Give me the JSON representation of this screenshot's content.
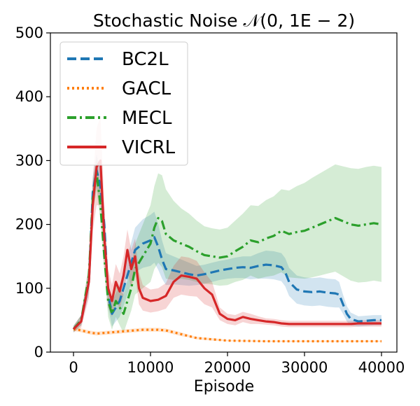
{
  "chart_data": {
    "type": "line",
    "title": "Stochastic Noise 𝒩(0, 1E − 2)",
    "xlabel": "Episode",
    "ylabel": "",
    "xlim": [
      -3000,
      42000
    ],
    "ylim": [
      0,
      500
    ],
    "xticks": [
      0,
      10000,
      20000,
      30000,
      40000
    ],
    "yticks": [
      0,
      100,
      200,
      300,
      400,
      500
    ],
    "grid": false,
    "legend_position": "top-left",
    "series": [
      {
        "name": "BC2L",
        "color": "#1f77b4",
        "style": "dashed",
        "x": [
          0,
          1000,
          2000,
          2500,
          3000,
          3500,
          4000,
          4500,
          5000,
          5500,
          6000,
          6500,
          7000,
          7500,
          8000,
          9000,
          10000,
          10500,
          11000,
          11500,
          12000,
          13000,
          14000,
          15000,
          16000,
          17000,
          18000,
          19000,
          20000,
          21000,
          22000,
          23000,
          24000,
          25000,
          26000,
          27000,
          27500,
          28000,
          29000,
          30000,
          31000,
          32000,
          33000,
          34000,
          34500,
          35000,
          35500,
          36000,
          37000,
          38000,
          39000,
          40000
        ],
        "y": [
          36,
          50,
          110,
          250,
          285,
          260,
          200,
          90,
          60,
          70,
          80,
          100,
          120,
          140,
          160,
          170,
          175,
          180,
          165,
          145,
          130,
          128,
          125,
          122,
          120,
          122,
          125,
          128,
          130,
          132,
          133,
          132,
          135,
          137,
          136,
          133,
          125,
          110,
          98,
          95,
          94,
          95,
          93,
          92,
          90,
          75,
          60,
          52,
          48,
          49,
          50,
          50
        ],
        "band": [
          5,
          8,
          20,
          25,
          25,
          25,
          25,
          20,
          20,
          22,
          25,
          28,
          30,
          32,
          35,
          38,
          40,
          40,
          36,
          30,
          25,
          22,
          20,
          18,
          15,
          15,
          15,
          15,
          15,
          16,
          17,
          18,
          20,
          22,
          22,
          22,
          22,
          22,
          22,
          22,
          22,
          22,
          22,
          22,
          20,
          15,
          12,
          10,
          8,
          8,
          8,
          8
        ]
      },
      {
        "name": "GACL",
        "color": "#ff7f0e",
        "style": "dotted",
        "x": [
          0,
          1000,
          2000,
          3000,
          4000,
          5000,
          6000,
          7000,
          8000,
          9000,
          10000,
          11000,
          12000,
          13000,
          14000,
          15000,
          16000,
          18000,
          20000,
          25000,
          30000,
          35000,
          40000
        ],
        "y": [
          36,
          34,
          31,
          29,
          30,
          31,
          32,
          33,
          34,
          35,
          35,
          35,
          34,
          31,
          28,
          25,
          22,
          20,
          18,
          17,
          17,
          17,
          17
        ],
        "band": [
          3,
          3,
          3,
          3,
          3,
          3,
          3,
          3,
          3,
          3,
          3,
          3,
          3,
          3,
          3,
          2,
          2,
          2,
          1,
          1,
          1,
          1,
          1
        ]
      },
      {
        "name": "MECL",
        "color": "#2ca02c",
        "style": "dashdot",
        "x": [
          0,
          1000,
          2000,
          2500,
          3000,
          3500,
          4000,
          4500,
          5000,
          5500,
          6000,
          6500,
          7000,
          7500,
          8000,
          8500,
          9000,
          9500,
          10000,
          10500,
          11000,
          11500,
          12000,
          13000,
          14000,
          15000,
          16000,
          17000,
          18000,
          19000,
          20000,
          21000,
          22000,
          23000,
          24000,
          25000,
          26000,
          27000,
          28000,
          29000,
          30000,
          31000,
          32000,
          33000,
          34000,
          35000,
          36000,
          37000,
          38000,
          39000,
          40000
        ],
        "y": [
          36,
          50,
          120,
          240,
          280,
          230,
          150,
          80,
          60,
          80,
          70,
          60,
          80,
          100,
          130,
          140,
          150,
          160,
          170,
          195,
          210,
          205,
          185,
          175,
          170,
          165,
          158,
          152,
          150,
          148,
          150,
          158,
          165,
          175,
          172,
          178,
          182,
          190,
          185,
          188,
          190,
          195,
          200,
          205,
          210,
          205,
          200,
          198,
          200,
          202,
          200
        ],
        "band": [
          5,
          8,
          20,
          25,
          25,
          25,
          25,
          25,
          25,
          25,
          28,
          30,
          32,
          35,
          40,
          45,
          50,
          55,
          60,
          65,
          70,
          72,
          70,
          62,
          55,
          52,
          48,
          45,
          44,
          44,
          45,
          48,
          52,
          55,
          57,
          60,
          62,
          65,
          68,
          72,
          75,
          78,
          80,
          82,
          84,
          86,
          88,
          89,
          90,
          90,
          90
        ]
      },
      {
        "name": "VICRL",
        "color": "#d62728",
        "style": "solid",
        "x": [
          0,
          1000,
          2000,
          2500,
          3000,
          3500,
          4000,
          4500,
          5000,
          5500,
          6000,
          6500,
          7000,
          7500,
          8000,
          8500,
          9000,
          10000,
          11000,
          12000,
          13000,
          14000,
          15000,
          16000,
          17000,
          18000,
          18500,
          19000,
          20000,
          21000,
          22000,
          23000,
          24000,
          25000,
          26000,
          27000,
          28000,
          29000,
          30000,
          31000,
          32000,
          33000,
          34000,
          35000,
          36000,
          37000,
          38000,
          39000,
          40000
        ],
        "y": [
          36,
          48,
          110,
          230,
          290,
          300,
          180,
          100,
          80,
          110,
          95,
          120,
          160,
          130,
          150,
          100,
          85,
          80,
          82,
          88,
          110,
          120,
          118,
          115,
          100,
          90,
          75,
          60,
          52,
          50,
          55,
          52,
          50,
          48,
          47,
          45,
          44,
          44,
          44,
          44,
          44,
          44,
          44,
          44,
          44,
          45,
          45,
          45,
          45
        ],
        "band": [
          5,
          10,
          25,
          40,
          60,
          70,
          50,
          30,
          25,
          28,
          28,
          30,
          32,
          30,
          28,
          25,
          20,
          18,
          18,
          20,
          25,
          30,
          30,
          28,
          25,
          20,
          15,
          10,
          8,
          8,
          8,
          8,
          6,
          5,
          5,
          5,
          5,
          5,
          5,
          5,
          5,
          5,
          5,
          5,
          5,
          5,
          5,
          5,
          5
        ]
      }
    ]
  }
}
